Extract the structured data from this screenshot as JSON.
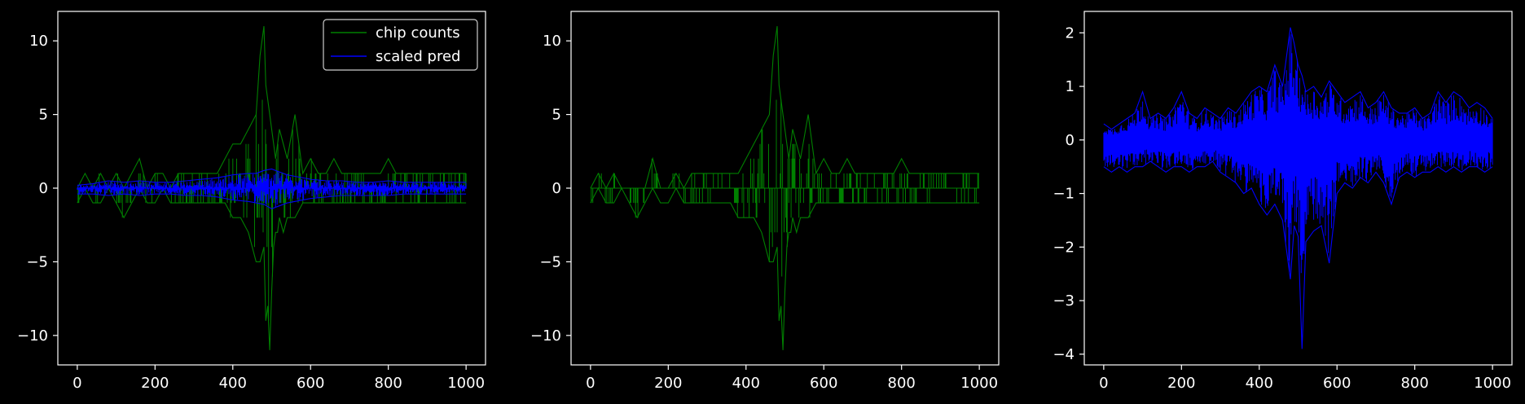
{
  "colors": {
    "background": "#000000",
    "axes": "#ffffff",
    "chip_counts": "#008000",
    "scaled_pred": "#0000ff"
  },
  "chart_data": [
    {
      "type": "line",
      "panel": 1,
      "title": "",
      "xlabel": "",
      "ylabel": "",
      "xlim": [
        -50,
        1050
      ],
      "ylim": [
        -12,
        12
      ],
      "xticks": [
        0,
        200,
        400,
        600,
        800,
        1000
      ],
      "yticks": [
        -10,
        -5,
        0,
        5,
        10
      ],
      "xtick_labels": [
        "0",
        "200",
        "400",
        "600",
        "800",
        "1000"
      ],
      "ytick_labels": [
        "−10",
        "−5",
        "0",
        "5",
        "10"
      ],
      "legend": {
        "position": "upper-right",
        "entries": [
          "chip counts",
          "scaled pred"
        ]
      },
      "series": [
        {
          "name": "chip counts",
          "color": "#008000",
          "x": [
            0,
            20,
            40,
            60,
            80,
            100,
            120,
            140,
            160,
            180,
            200,
            220,
            240,
            260,
            280,
            300,
            320,
            340,
            360,
            380,
            400,
            420,
            440,
            460,
            470,
            480,
            485,
            490,
            495,
            500,
            505,
            510,
            515,
            520,
            530,
            540,
            560,
            580,
            600,
            620,
            640,
            660,
            680,
            700,
            720,
            740,
            760,
            780,
            800,
            820,
            840,
            860,
            880,
            900,
            920,
            940,
            960,
            980,
            1000
          ],
          "pos": [
            0,
            1,
            0,
            1,
            0,
            1,
            0,
            1,
            2,
            0,
            1,
            1,
            0,
            1,
            1,
            1,
            1,
            1,
            1,
            2,
            3,
            3,
            4,
            5,
            9,
            11,
            7,
            6,
            5,
            4,
            3,
            2,
            3,
            4,
            3,
            2,
            5,
            1,
            2,
            1,
            1,
            2,
            1,
            1,
            1,
            1,
            1,
            1,
            2,
            1,
            1,
            1,
            1,
            1,
            1,
            1,
            1,
            1,
            1
          ],
          "neg": [
            -1,
            0,
            -1,
            -1,
            0,
            -1,
            -2,
            -1,
            0,
            -1,
            -1,
            0,
            -1,
            -1,
            -1,
            -1,
            -1,
            -1,
            -1,
            -1,
            -2,
            -2,
            -3,
            -5,
            -5,
            -4,
            -9,
            -8,
            -11,
            -7,
            -4,
            -3,
            -3,
            -2,
            -3,
            -2,
            -2,
            -1,
            -1,
            -1,
            -1,
            -1,
            -1,
            -1,
            -1,
            -1,
            -1,
            -1,
            -1,
            -1,
            -1,
            -1,
            -1,
            -1,
            -1,
            -1,
            -1,
            -1,
            -1
          ]
        },
        {
          "name": "scaled pred",
          "color": "#0000ff",
          "x": [
            0,
            40,
            80,
            120,
            160,
            200,
            240,
            280,
            320,
            360,
            400,
            440,
            460,
            480,
            500,
            520,
            540,
            560,
            600,
            640,
            680,
            720,
            760,
            800,
            840,
            880,
            920,
            960,
            1000
          ],
          "pos": [
            0.2,
            0.3,
            0.5,
            0.4,
            0.5,
            0.4,
            0.4,
            0.5,
            0.6,
            0.7,
            0.9,
            1.0,
            1.0,
            1.2,
            1.3,
            1.1,
            0.9,
            0.8,
            0.6,
            0.5,
            0.5,
            0.4,
            0.4,
            0.5,
            0.4,
            0.4,
            0.4,
            0.4,
            0.4
          ],
          "neg": [
            -0.4,
            -0.4,
            -0.5,
            -0.4,
            -0.5,
            -0.4,
            -0.4,
            -0.5,
            -0.5,
            -0.6,
            -0.8,
            -0.9,
            -1.0,
            -1.1,
            -1.4,
            -1.2,
            -1.0,
            -0.9,
            -0.7,
            -0.6,
            -0.5,
            -0.5,
            -0.5,
            -0.5,
            -0.4,
            -0.4,
            -0.4,
            -0.4,
            -0.4
          ]
        }
      ]
    },
    {
      "type": "line",
      "panel": 2,
      "title": "",
      "xlabel": "",
      "ylabel": "",
      "xlim": [
        -50,
        1050
      ],
      "ylim": [
        -12,
        12
      ],
      "xticks": [
        0,
        200,
        400,
        600,
        800,
        1000
      ],
      "yticks": [
        -10,
        -5,
        0,
        5,
        10
      ],
      "xtick_labels": [
        "0",
        "200",
        "400",
        "600",
        "800",
        "1000"
      ],
      "ytick_labels": [
        "−10",
        "−5",
        "0",
        "5",
        "10"
      ],
      "series": [
        {
          "name": "",
          "color": "#008000",
          "x": [
            0,
            20,
            40,
            60,
            80,
            100,
            120,
            140,
            160,
            180,
            200,
            220,
            240,
            260,
            280,
            300,
            320,
            340,
            360,
            380,
            400,
            420,
            440,
            460,
            470,
            480,
            485,
            490,
            495,
            500,
            505,
            510,
            515,
            520,
            530,
            540,
            560,
            580,
            600,
            620,
            640,
            660,
            680,
            700,
            720,
            740,
            760,
            780,
            800,
            820,
            840,
            860,
            880,
            900,
            920,
            940,
            960,
            980,
            1000
          ],
          "pos": [
            0,
            1,
            0,
            1,
            0,
            0,
            0,
            0,
            2,
            0,
            0,
            1,
            0,
            1,
            1,
            1,
            1,
            1,
            1,
            1,
            2,
            3,
            4,
            5,
            9,
            11,
            7,
            6,
            5,
            4,
            3,
            2,
            3,
            4,
            3,
            2,
            5,
            1,
            2,
            1,
            1,
            2,
            1,
            1,
            1,
            1,
            1,
            1,
            2,
            1,
            1,
            1,
            1,
            1,
            1,
            1,
            1,
            1,
            1
          ],
          "neg": [
            -1,
            0,
            -1,
            -1,
            0,
            -1,
            -2,
            -1,
            0,
            -1,
            -1,
            0,
            -1,
            -1,
            -1,
            -1,
            -1,
            -1,
            -1,
            -2,
            -2,
            -2,
            -3,
            -5,
            -5,
            -4,
            -9,
            -8,
            -11,
            -7,
            -4,
            -3,
            -3,
            -2,
            -3,
            -2,
            -2,
            -1,
            -1,
            -1,
            -1,
            -1,
            -1,
            -1,
            -1,
            -1,
            -1,
            -1,
            -1,
            -1,
            -1,
            -1,
            -1,
            -1,
            -1,
            -1,
            -1,
            -1,
            -1
          ]
        }
      ]
    },
    {
      "type": "line",
      "panel": 3,
      "title": "",
      "xlabel": "",
      "ylabel": "",
      "xlim": [
        -50,
        1050
      ],
      "ylim": [
        -4.2,
        2.4
      ],
      "xticks": [
        0,
        200,
        400,
        600,
        800,
        1000
      ],
      "yticks": [
        -4,
        -3,
        -2,
        -1,
        0,
        1,
        2
      ],
      "xtick_labels": [
        "0",
        "200",
        "400",
        "600",
        "800",
        "1000"
      ],
      "ytick_labels": [
        "−4",
        "−3",
        "−2",
        "−1",
        "0",
        "1",
        "2"
      ],
      "series": [
        {
          "name": "",
          "color": "#0000ff",
          "x": [
            0,
            20,
            40,
            60,
            80,
            100,
            120,
            140,
            160,
            180,
            200,
            220,
            240,
            260,
            280,
            300,
            320,
            340,
            360,
            380,
            400,
            420,
            440,
            460,
            480,
            490,
            500,
            510,
            520,
            540,
            560,
            580,
            600,
            620,
            640,
            660,
            680,
            700,
            720,
            740,
            760,
            780,
            800,
            820,
            840,
            860,
            880,
            900,
            920,
            940,
            960,
            980,
            1000
          ],
          "pos": [
            0.3,
            0.2,
            0.3,
            0.4,
            0.5,
            0.9,
            0.4,
            0.5,
            0.4,
            0.6,
            0.9,
            0.5,
            0.4,
            0.6,
            0.5,
            0.4,
            0.6,
            0.5,
            0.7,
            0.9,
            1.0,
            0.9,
            1.4,
            1.0,
            2.1,
            1.8,
            1.4,
            1.2,
            0.9,
            1.0,
            0.8,
            1.1,
            0.9,
            0.7,
            0.8,
            0.9,
            0.6,
            0.7,
            0.9,
            0.6,
            0.5,
            0.5,
            0.6,
            0.4,
            0.5,
            0.9,
            0.7,
            0.9,
            0.8,
            0.6,
            0.7,
            0.6,
            0.4
          ],
          "neg": [
            -0.5,
            -0.6,
            -0.5,
            -0.6,
            -0.5,
            -0.5,
            -0.4,
            -0.5,
            -0.6,
            -0.5,
            -0.5,
            -0.6,
            -0.5,
            -0.5,
            -0.4,
            -0.6,
            -0.7,
            -0.8,
            -1.0,
            -0.9,
            -1.2,
            -1.4,
            -1.2,
            -1.5,
            -2.6,
            -1.6,
            -1.8,
            -3.9,
            -1.9,
            -1.7,
            -1.6,
            -2.3,
            -1.0,
            -0.8,
            -0.9,
            -0.7,
            -0.8,
            -0.6,
            -0.8,
            -1.2,
            -0.7,
            -0.6,
            -0.7,
            -0.6,
            -0.6,
            -0.5,
            -0.6,
            -0.5,
            -0.6,
            -0.5,
            -0.5,
            -0.6,
            -0.5
          ]
        }
      ]
    }
  ]
}
